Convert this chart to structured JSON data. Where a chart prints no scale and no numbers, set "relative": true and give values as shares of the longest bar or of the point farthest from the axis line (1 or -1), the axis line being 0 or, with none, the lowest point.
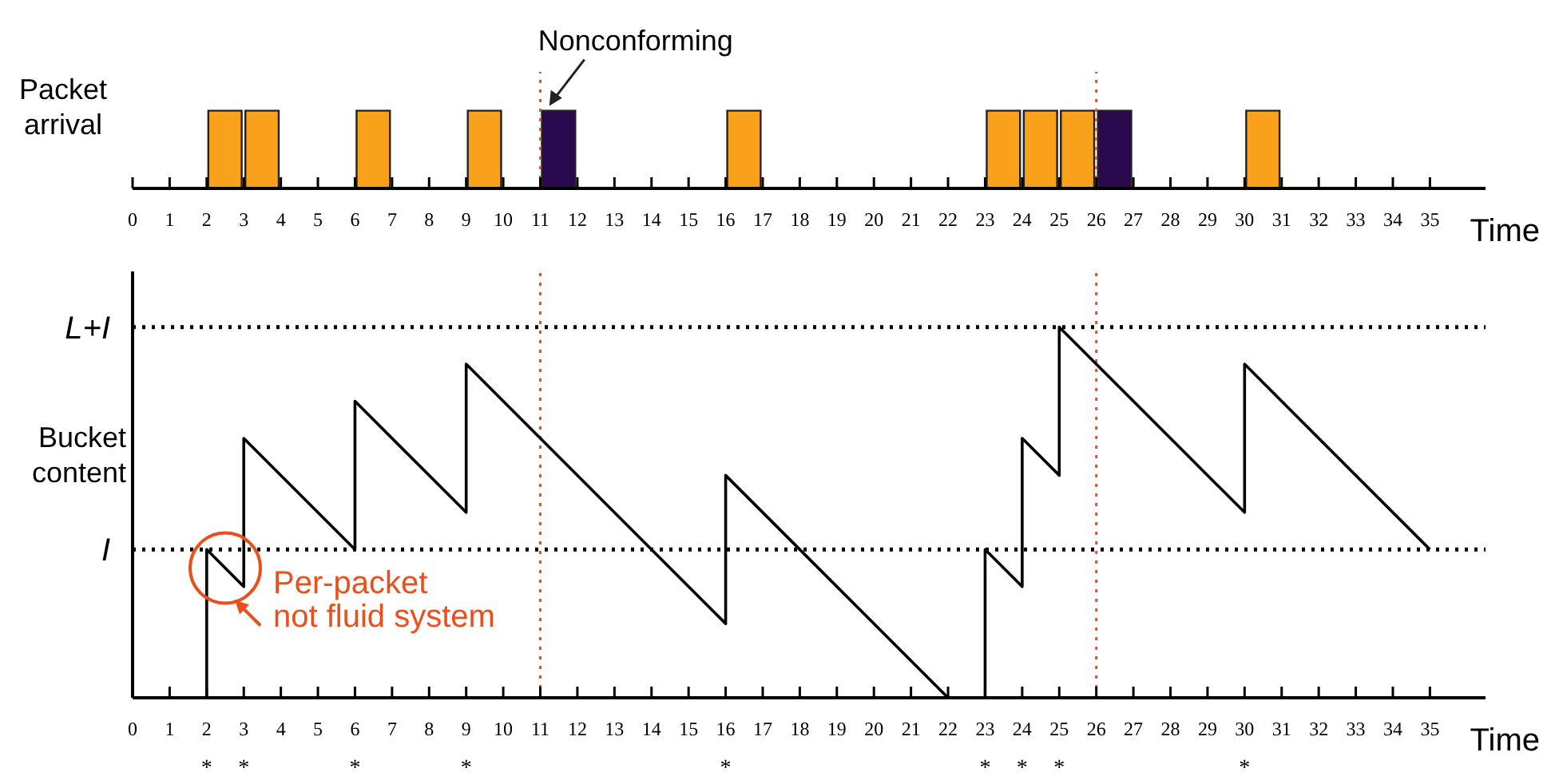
{
  "chart_data": [
    {
      "type": "bar",
      "relative": true,
      "ylabel": "Packet arrival",
      "xlabel": "Time",
      "xlim": [
        0,
        36.5
      ],
      "xticks": [
        0,
        1,
        2,
        3,
        4,
        5,
        6,
        7,
        8,
        9,
        10,
        11,
        12,
        13,
        14,
        15,
        16,
        17,
        18,
        19,
        20,
        21,
        22,
        23,
        24,
        25,
        26,
        27,
        28,
        29,
        30,
        31,
        32,
        33,
        34,
        35
      ],
      "series": [
        {
          "color": "#f9a11b",
          "x": [
            2.5,
            3.5,
            6.5,
            9.5,
            16.5,
            23.5,
            24.5,
            25.5,
            30.5
          ],
          "values": [
            1,
            1,
            1,
            1,
            1,
            1,
            1,
            1,
            1
          ]
        },
        {
          "color": "#2a0a4e",
          "x": [
            11.5,
            26.5
          ],
          "values": [
            1,
            1
          ]
        }
      ],
      "ref_lines": [
        {
          "axis": "x",
          "value": 11,
          "color": "#e8501e",
          "line_style": "dotted"
        },
        {
          "axis": "x",
          "value": 26,
          "color": "#e8501e",
          "line_style": "dotted"
        }
      ],
      "annotations": [
        {
          "text": "Nonconforming",
          "x": 11.5,
          "y": 1
        }
      ]
    },
    {
      "type": "line",
      "relative": true,
      "ylabel": "Bucket content",
      "xlabel": "Time",
      "xlim": [
        0,
        36.5
      ],
      "xticks": [
        0,
        1,
        2,
        3,
        4,
        5,
        6,
        7,
        8,
        9,
        10,
        11,
        12,
        13,
        14,
        15,
        16,
        17,
        18,
        19,
        20,
        21,
        22,
        23,
        24,
        25,
        26,
        27,
        28,
        29,
        30,
        31,
        32,
        33,
        34,
        35
      ],
      "series": [
        {
          "color": "#000000",
          "x": [
            2,
            2,
            3,
            3,
            6,
            6,
            9,
            9,
            16,
            16,
            22,
            23,
            23,
            24,
            24,
            25,
            25,
            30,
            30,
            35
          ],
          "values": [
            0,
            0.4,
            0.3,
            0.7,
            0.4,
            0.8,
            0.5,
            0.9,
            0.2,
            0.6,
            0,
            0,
            0.4,
            0.3,
            0.7,
            0.6,
            1,
            0.5,
            0.9,
            0.4
          ]
        }
      ],
      "ref_lines": [
        {
          "axis": "y",
          "value": 0.4,
          "label": "I",
          "color": "#000000",
          "line_style": "dotted"
        },
        {
          "axis": "y",
          "value": 1,
          "label": "L+I",
          "color": "#000000",
          "line_style": "dotted"
        },
        {
          "axis": "x",
          "value": 11,
          "color": "#e8501e",
          "line_style": "dotted"
        },
        {
          "axis": "x",
          "value": 26,
          "color": "#e8501e",
          "line_style": "dotted"
        }
      ],
      "annotations": [
        {
          "text": "Per-packet not fluid system",
          "x": 2.5,
          "y": 0.35
        },
        "*",
        "*",
        "*",
        "*",
        "*",
        "*",
        "*",
        "*",
        "*"
      ]
    }
  ]
}
